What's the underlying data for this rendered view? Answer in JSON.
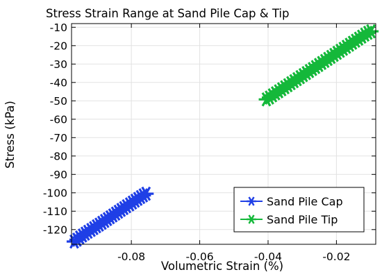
{
  "chart_data": {
    "type": "scatter",
    "title": "Stress Strain Range at Sand Pile Cap & Tip",
    "xlabel": "Volumetric Strain (%)",
    "ylabel": "Stress (kPa)",
    "xlim": [
      -0.0975,
      -0.0085
    ],
    "ylim": [
      -128,
      -8
    ],
    "xticks": [
      -0.08,
      -0.06,
      -0.04,
      -0.02
    ],
    "xtick_labels": [
      "-0.08",
      "-0.06",
      "-0.04",
      "-0.02"
    ],
    "yticks": [
      -10,
      -20,
      -30,
      -40,
      -50,
      -60,
      -70,
      -80,
      -90,
      -100,
      -110,
      -120
    ],
    "ytick_labels": [
      "-10",
      "-20",
      "-30",
      "-40",
      "-50",
      "-60",
      "-70",
      "-80",
      "-90",
      "-100",
      "-110",
      "-120"
    ],
    "grid": true,
    "legend_position": "bottom-right",
    "series": [
      {
        "name": "Sand Pile Cap",
        "color": "#1f3fe6",
        "marker": "asterisk",
        "x": [
          -0.0967,
          -0.0959,
          -0.0951,
          -0.0943,
          -0.0935,
          -0.0927,
          -0.0918,
          -0.091,
          -0.0902,
          -0.0894,
          -0.0886,
          -0.0878,
          -0.087,
          -0.0862,
          -0.0854,
          -0.0846,
          -0.0838,
          -0.083,
          -0.0822,
          -0.0814,
          -0.0805,
          -0.0797,
          -0.0789,
          -0.0781,
          -0.0773,
          -0.0765,
          -0.0757
        ],
        "y": [
          -126.5,
          -125.5,
          -124.3,
          -123.2,
          -122.2,
          -121.2,
          -120.2,
          -119.2,
          -118.2,
          -117.3,
          -116.3,
          -115.3,
          -114.3,
          -113.3,
          -112.3,
          -111.3,
          -110.3,
          -109.3,
          -108.3,
          -107.3,
          -106.3,
          -105.3,
          -104.3,
          -103.3,
          -102.3,
          -101.4,
          -100.5
        ]
      },
      {
        "name": "Sand Pile Tip",
        "color": "#14b83a",
        "marker": "asterisk",
        "x": [
          -0.0405,
          -0.0396,
          -0.0387,
          -0.0378,
          -0.0369,
          -0.036,
          -0.0351,
          -0.0342,
          -0.0333,
          -0.0324,
          -0.0315,
          -0.0306,
          -0.0297,
          -0.0288,
          -0.0279,
          -0.027,
          -0.0261,
          -0.0252,
          -0.0243,
          -0.0234,
          -0.0225,
          -0.0216,
          -0.0207,
          -0.0198,
          -0.0189,
          -0.018,
          -0.0171,
          -0.0162,
          -0.0153,
          -0.0144,
          -0.0135,
          -0.0126,
          -0.0117,
          -0.0108,
          -0.0099
        ],
        "y": [
          -49.2,
          -48.2,
          -47.0,
          -45.9,
          -44.8,
          -43.7,
          -42.6,
          -41.5,
          -40.4,
          -39.3,
          -38.2,
          -37.1,
          -36.0,
          -34.9,
          -33.8,
          -32.7,
          -31.6,
          -30.5,
          -29.4,
          -28.3,
          -27.2,
          -26.1,
          -25.0,
          -23.9,
          -22.8,
          -21.7,
          -20.6,
          -19.5,
          -18.4,
          -17.3,
          -16.2,
          -15.1,
          -14.0,
          -13.0,
          -12.2
        ]
      }
    ]
  }
}
